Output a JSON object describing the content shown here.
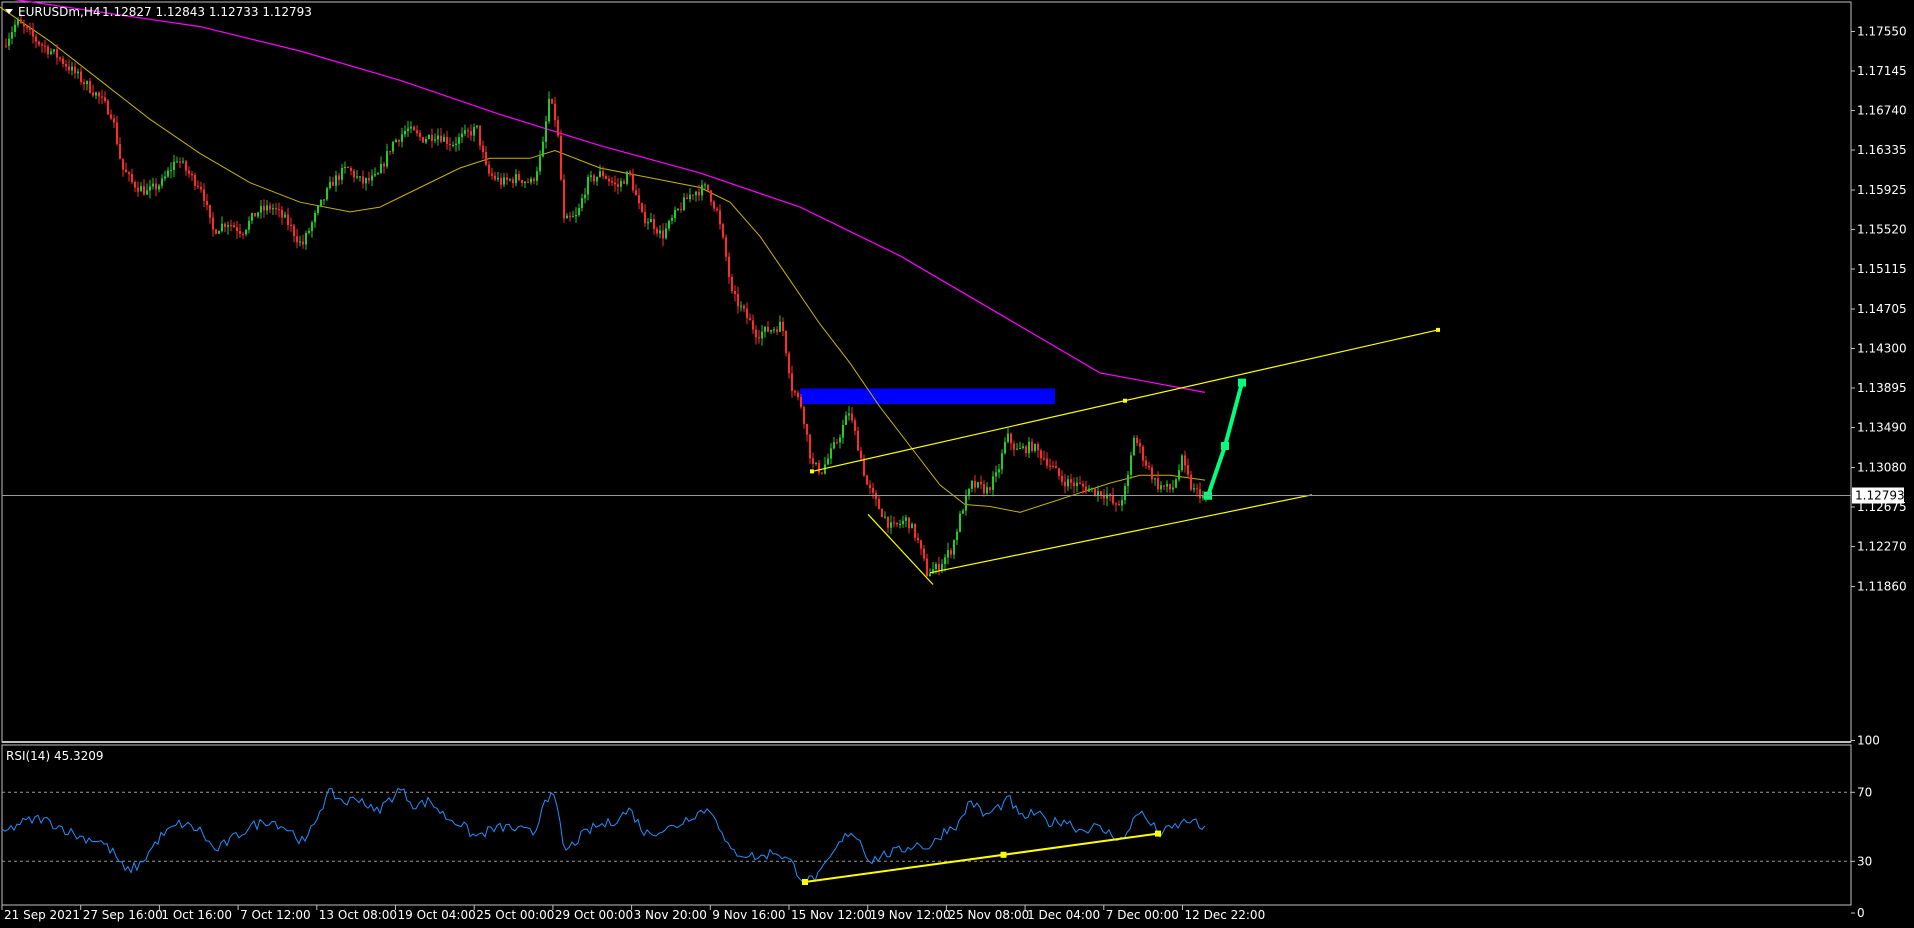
{
  "header": {
    "symbol": "EURUSDm,H4",
    "ohlc": "1.12827 1.12843 1.12733 1.12793"
  },
  "rsi_header": {
    "label": "RSI(14) 45.3209"
  },
  "colors": {
    "background": "#000000",
    "bull_candle": "#22cc22",
    "bear_candle": "#ff2a2a",
    "ma_fast": "#c8b400",
    "ma_slow": "#ff00ff",
    "trendline": "#ffff00",
    "zone": "#0000ff",
    "projection": "#00ff7f",
    "rsi_line": "#1e90ff",
    "price_tag_bg": "#ffffff"
  },
  "chart_data": {
    "type": "candlestick",
    "symbol": "EURUSDm",
    "timeframe": "H4",
    "price_axis": {
      "ticks": [
        "1.17550",
        "1.17145",
        "1.16740",
        "1.16335",
        "1.15925",
        "1.15520",
        "1.15115",
        "1.14705",
        "1.14300",
        "1.13895",
        "1.13490",
        "1.13080",
        "1.12675",
        "1.12270",
        "1.11860"
      ],
      "range": [
        1.1166,
        1.1786
      ]
    },
    "current_price": "1.12793",
    "time_axis": {
      "ticks": [
        "21 Sep 2021",
        "27 Sep 16:00",
        "1 Oct 16:00",
        "7 Oct 12:00",
        "13 Oct 08:00",
        "19 Oct 04:00",
        "25 Oct 00:00",
        "29 Oct 00:00",
        "3 Nov 20:00",
        "9 Nov 16:00",
        "15 Nov 12:00",
        "19 Nov 12:00",
        "25 Nov 08:00",
        "1 Dec 04:00",
        "7 Dec 00:00",
        "12 Dec 22:00"
      ]
    },
    "price_path": [
      [
        0,
        1.173
      ],
      [
        20,
        1.1765
      ],
      [
        40,
        1.1745
      ],
      [
        60,
        1.173
      ],
      [
        80,
        1.171
      ],
      [
        100,
        1.169
      ],
      [
        115,
        1.167
      ],
      [
        125,
        1.1615
      ],
      [
        135,
        1.16
      ],
      [
        150,
        1.159
      ],
      [
        165,
        1.16
      ],
      [
        180,
        1.1625
      ],
      [
        195,
        1.1605
      ],
      [
        205,
        1.1595
      ],
      [
        215,
        1.155
      ],
      [
        230,
        1.156
      ],
      [
        245,
        1.155
      ],
      [
        260,
        1.157
      ],
      [
        275,
        1.1575
      ],
      [
        290,
        1.156
      ],
      [
        305,
        1.1535
      ],
      [
        320,
        1.157
      ],
      [
        335,
        1.16
      ],
      [
        350,
        1.1615
      ],
      [
        365,
        1.16
      ],
      [
        380,
        1.1605
      ],
      [
        395,
        1.164
      ],
      [
        410,
        1.1655
      ],
      [
        425,
        1.1645
      ],
      [
        440,
        1.165
      ],
      [
        455,
        1.164
      ],
      [
        470,
        1.165
      ],
      [
        480,
        1.1655
      ],
      [
        490,
        1.161
      ],
      [
        505,
        1.16
      ],
      [
        520,
        1.1605
      ],
      [
        535,
        1.16
      ],
      [
        545,
        1.163
      ],
      [
        552,
        1.1685
      ],
      [
        560,
        1.166
      ],
      [
        567,
        1.156
      ],
      [
        580,
        1.1565
      ],
      [
        590,
        1.16
      ],
      [
        605,
        1.161
      ],
      [
        620,
        1.1595
      ],
      [
        632,
        1.161
      ],
      [
        645,
        1.1565
      ],
      [
        655,
        1.156
      ],
      [
        665,
        1.1545
      ],
      [
        680,
        1.157
      ],
      [
        695,
        1.159
      ],
      [
        710,
        1.1595
      ],
      [
        720,
        1.157
      ],
      [
        728,
        1.153
      ],
      [
        735,
        1.1485
      ],
      [
        745,
        1.147
      ],
      [
        760,
        1.1445
      ],
      [
        775,
        1.145
      ],
      [
        785,
        1.1455
      ],
      [
        795,
        1.139
      ],
      [
        805,
        1.137
      ],
      [
        815,
        1.131
      ],
      [
        825,
        1.1305
      ],
      [
        840,
        1.1335
      ],
      [
        852,
        1.1365
      ],
      [
        860,
        1.1335
      ],
      [
        870,
        1.129
      ],
      [
        880,
        1.127
      ],
      [
        895,
        1.1245
      ],
      [
        910,
        1.1255
      ],
      [
        920,
        1.1235
      ],
      [
        930,
        1.12
      ],
      [
        940,
        1.1205
      ],
      [
        955,
        1.1225
      ],
      [
        965,
        1.1265
      ],
      [
        975,
        1.129
      ],
      [
        990,
        1.1285
      ],
      [
        1000,
        1.13
      ],
      [
        1010,
        1.134
      ],
      [
        1020,
        1.1325
      ],
      [
        1035,
        1.133
      ],
      [
        1050,
        1.1315
      ],
      [
        1065,
        1.1295
      ],
      [
        1080,
        1.129
      ],
      [
        1095,
        1.1285
      ],
      [
        1110,
        1.128
      ],
      [
        1120,
        1.1265
      ],
      [
        1130,
        1.129
      ],
      [
        1137,
        1.134
      ],
      [
        1150,
        1.131
      ],
      [
        1160,
        1.129
      ],
      [
        1175,
        1.1285
      ],
      [
        1185,
        1.1315
      ],
      [
        1195,
        1.1285
      ],
      [
        1208,
        1.1279
      ]
    ],
    "moving_average_fast_path": [
      [
        0,
        1.178
      ],
      [
        50,
        1.1745
      ],
      [
        100,
        1.1705
      ],
      [
        150,
        1.1665
      ],
      [
        200,
        1.163
      ],
      [
        250,
        1.16
      ],
      [
        300,
        1.158
      ],
      [
        350,
        1.157
      ],
      [
        380,
        1.1575
      ],
      [
        420,
        1.1595
      ],
      [
        460,
        1.1615
      ],
      [
        490,
        1.1625
      ],
      [
        530,
        1.1625
      ],
      [
        555,
        1.1633
      ],
      [
        600,
        1.1615
      ],
      [
        650,
        1.1605
      ],
      [
        700,
        1.1595
      ],
      [
        730,
        1.158
      ],
      [
        760,
        1.1545
      ],
      [
        790,
        1.15
      ],
      [
        820,
        1.1455
      ],
      [
        850,
        1.1415
      ],
      [
        880,
        1.137
      ],
      [
        910,
        1.133
      ],
      [
        940,
        1.129
      ],
      [
        965,
        1.127
      ],
      [
        990,
        1.1268
      ],
      [
        1020,
        1.1262
      ],
      [
        1050,
        1.1272
      ],
      [
        1080,
        1.1282
      ],
      [
        1110,
        1.1292
      ],
      [
        1140,
        1.13
      ],
      [
        1170,
        1.13
      ],
      [
        1205,
        1.1295
      ]
    ],
    "moving_average_slow_path": [
      [
        0,
        1.179
      ],
      [
        100,
        1.1775
      ],
      [
        200,
        1.176
      ],
      [
        300,
        1.1735
      ],
      [
        400,
        1.1705
      ],
      [
        500,
        1.167
      ],
      [
        600,
        1.1638
      ],
      [
        700,
        1.161
      ],
      [
        800,
        1.1575
      ],
      [
        900,
        1.1525
      ],
      [
        1000,
        1.1465
      ],
      [
        1100,
        1.1405
      ],
      [
        1205,
        1.1385
      ]
    ],
    "trendlines": [
      {
        "from": [
          812,
          1.1304
        ],
        "to": [
          1438,
          1.1449
        ]
      },
      {
        "from": [
          930,
          1.12
        ],
        "to": [
          1312,
          1.128
        ]
      },
      {
        "from": [
          868,
          1.126
        ],
        "to": [
          933,
          1.1188
        ]
      }
    ],
    "resistance_zone": {
      "x": [
        800,
        1055
      ],
      "price": [
        1.1373,
        1.1389
      ]
    },
    "projection": [
      [
        1208,
        1.1279
      ],
      [
        1225,
        1.133
      ],
      [
        1242,
        1.1395
      ]
    ],
    "rsi": {
      "label": "RSI(14)",
      "value": 45.3209,
      "levels": [
        30,
        70
      ],
      "scale_ticks": [
        "100",
        "70",
        "30",
        "0"
      ],
      "range": [
        0,
        100
      ],
      "path": [
        [
          0,
          45
        ],
        [
          20,
          52
        ],
        [
          40,
          55
        ],
        [
          60,
          50
        ],
        [
          80,
          44
        ],
        [
          100,
          42
        ],
        [
          115,
          34
        ],
        [
          125,
          24
        ],
        [
          140,
          28
        ],
        [
          160,
          44
        ],
        [
          180,
          52
        ],
        [
          200,
          48
        ],
        [
          215,
          36
        ],
        [
          230,
          42
        ],
        [
          250,
          50
        ],
        [
          270,
          54
        ],
        [
          290,
          48
        ],
        [
          305,
          40
        ],
        [
          320,
          60
        ],
        [
          330,
          70
        ],
        [
          345,
          64
        ],
        [
          360,
          67
        ],
        [
          375,
          58
        ],
        [
          390,
          66
        ],
        [
          400,
          72
        ],
        [
          415,
          62
        ],
        [
          430,
          65
        ],
        [
          445,
          56
        ],
        [
          460,
          52
        ],
        [
          475,
          44
        ],
        [
          490,
          48
        ],
        [
          505,
          50
        ],
        [
          520,
          48
        ],
        [
          535,
          46
        ],
        [
          545,
          68
        ],
        [
          555,
          66
        ],
        [
          565,
          35
        ],
        [
          580,
          44
        ],
        [
          595,
          50
        ],
        [
          610,
          52
        ],
        [
          630,
          60
        ],
        [
          645,
          46
        ],
        [
          660,
          48
        ],
        [
          675,
          50
        ],
        [
          690,
          56
        ],
        [
          705,
          60
        ],
        [
          715,
          58
        ],
        [
          722,
          45
        ],
        [
          730,
          36
        ],
        [
          745,
          34
        ],
        [
          760,
          32
        ],
        [
          775,
          36
        ],
        [
          790,
          30
        ],
        [
          805,
          18
        ],
        [
          820,
          22
        ],
        [
          835,
          36
        ],
        [
          850,
          48
        ],
        [
          860,
          42
        ],
        [
          870,
          30
        ],
        [
          885,
          34
        ],
        [
          900,
          36
        ],
        [
          915,
          40
        ],
        [
          930,
          38
        ],
        [
          945,
          48
        ],
        [
          960,
          52
        ],
        [
          970,
          66
        ],
        [
          985,
          56
        ],
        [
          1000,
          62
        ],
        [
          1010,
          66
        ],
        [
          1020,
          55
        ],
        [
          1035,
          58
        ],
        [
          1050,
          52
        ],
        [
          1065,
          54
        ],
        [
          1080,
          48
        ],
        [
          1095,
          50
        ],
        [
          1110,
          46
        ],
        [
          1125,
          42
        ],
        [
          1137,
          60
        ],
        [
          1150,
          52
        ],
        [
          1160,
          46
        ],
        [
          1175,
          50
        ],
        [
          1190,
          54
        ],
        [
          1205,
          48
        ]
      ],
      "trendline": {
        "from": [
          805,
          18
        ],
        "to": [
          1158,
          46
        ]
      }
    }
  }
}
